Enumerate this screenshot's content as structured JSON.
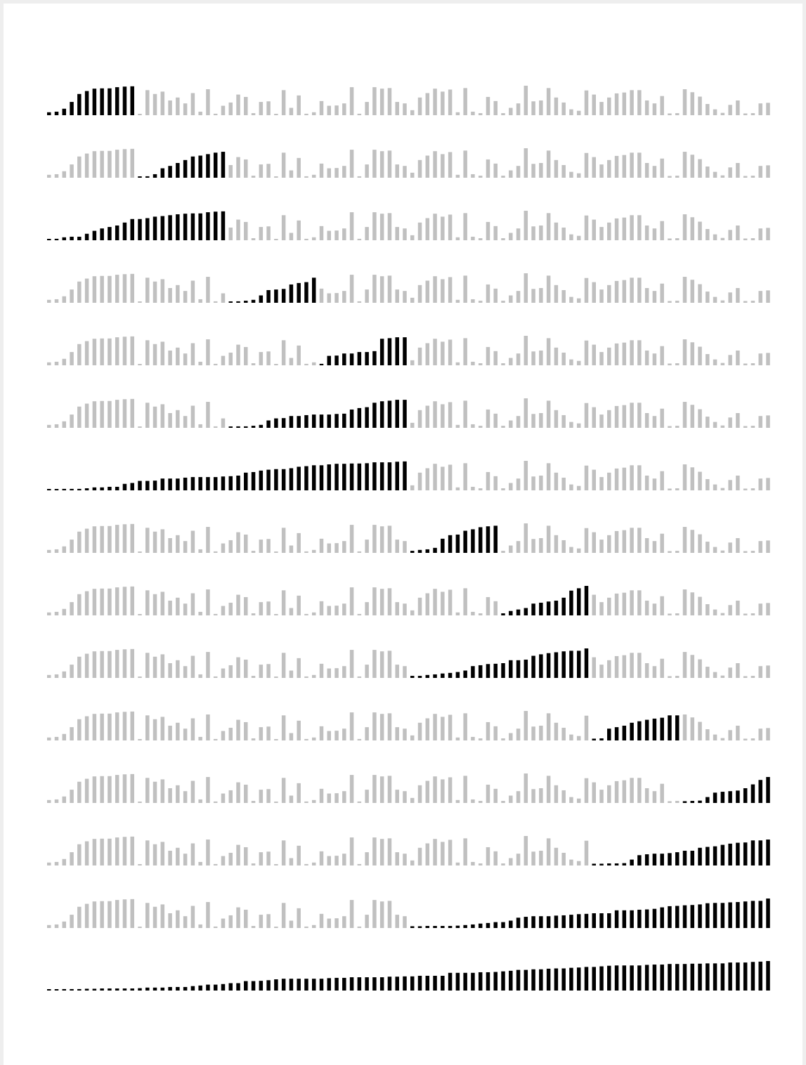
{
  "chart_data": {
    "type": "bar",
    "title": "",
    "xlabel": "",
    "ylabel": "",
    "grid": false,
    "legend": "none",
    "colors": {
      "highlight": "#000000",
      "context": "#c0c0c0"
    },
    "n_bars": 96,
    "ylim": [
      0,
      1
    ],
    "values": [
      0.1,
      0.12,
      0.22,
      0.45,
      0.72,
      0.82,
      0.9,
      0.91,
      0.91,
      0.95,
      0.97,
      0.98,
      0.03,
      0.85,
      0.72,
      0.8,
      0.5,
      0.6,
      0.4,
      0.75,
      0.12,
      0.88,
      0.05,
      0.32,
      0.43,
      0.7,
      0.62,
      0.07,
      0.45,
      0.47,
      0.04,
      0.85,
      0.25,
      0.67,
      0.05,
      0.1,
      0.48,
      0.32,
      0.33,
      0.4,
      0.95,
      0.05,
      0.45,
      0.95,
      0.9,
      0.92,
      0.45,
      0.4,
      0.17,
      0.6,
      0.75,
      0.9,
      0.8,
      0.87,
      0.1,
      0.92,
      0.12,
      0.07,
      0.62,
      0.48,
      0.07,
      0.25,
      0.4,
      1.0,
      0.47,
      0.5,
      0.92,
      0.6,
      0.43,
      0.2,
      0.15,
      0.84,
      0.7,
      0.45,
      0.6,
      0.74,
      0.77,
      0.85,
      0.85,
      0.5,
      0.4,
      0.65,
      0.06,
      0.07,
      0.88,
      0.78,
      0.63,
      0.38,
      0.2,
      0.08,
      0.35,
      0.5,
      0.06,
      0.07,
      0.4,
      0.42
    ],
    "rows": [
      {
        "start": 0,
        "end": 11
      },
      {
        "start": 12,
        "end": 23
      },
      {
        "start": 0,
        "end": 23
      },
      {
        "start": 24,
        "end": 35
      },
      {
        "start": 36,
        "end": 47
      },
      {
        "start": 24,
        "end": 47
      },
      {
        "start": 0,
        "end": 47
      },
      {
        "start": 48,
        "end": 59
      },
      {
        "start": 60,
        "end": 71
      },
      {
        "start": 48,
        "end": 71
      },
      {
        "start": 72,
        "end": 83
      },
      {
        "start": 84,
        "end": 95
      },
      {
        "start": 72,
        "end": 95
      },
      {
        "start": 48,
        "end": 95
      },
      {
        "start": 0,
        "end": 95
      }
    ]
  }
}
